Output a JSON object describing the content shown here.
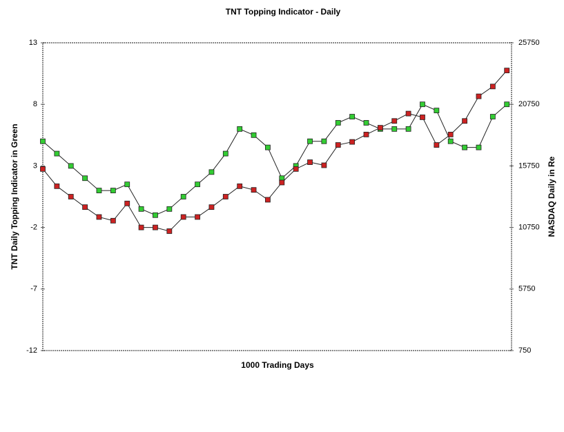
{
  "chart_data": {
    "type": "line",
    "title": "TNT Topping Indicator - Daily",
    "x_label": "1000 Trading Days",
    "y_label": "TNT Daily Topping Indicator in Green",
    "y2_label": "NASDAQ Daily in Re",
    "x": [
      0,
      30,
      60,
      90,
      120,
      150,
      180,
      210,
      240,
      270,
      300,
      330,
      360,
      390,
      420,
      450,
      480,
      510,
      540,
      570,
      600,
      630,
      660,
      690,
      720,
      750,
      780,
      810,
      840,
      870,
      900,
      930,
      960,
      990
    ],
    "xlim": [
      0,
      1000
    ],
    "ylim": [
      -12,
      13
    ],
    "yticks": [
      13,
      8,
      3,
      -2,
      -7,
      -12
    ],
    "y2lim": [
      750,
      25750
    ],
    "y2ticks": [
      25750,
      20750,
      15750,
      10750,
      5750,
      750
    ],
    "series": [
      {
        "name": "TNT Topping Indicator",
        "color": "#33cc33",
        "values": [
          5,
          4,
          3,
          2,
          1,
          1,
          1.5,
          -0.5,
          -1,
          -0.5,
          0.5,
          1.5,
          2.5,
          4,
          6,
          5.5,
          4.5,
          2,
          3,
          5,
          5,
          6.5,
          7,
          6.5,
          6,
          6,
          6,
          8,
          7.5,
          5,
          4.5,
          4.5,
          7,
          8
        ]
      },
      {
        "name": "NASDAQ",
        "color": "#cc2222",
        "axis": "y2",
        "values": [
          15500,
          14100,
          13250,
          12400,
          11600,
          11300,
          12700,
          10750,
          10750,
          10450,
          11600,
          11600,
          12400,
          13250,
          14100,
          13800,
          13000,
          14400,
          15500,
          16050,
          15800,
          17450,
          17700,
          18300,
          18850,
          19400,
          20000,
          19700,
          17450,
          18300,
          19400,
          21400,
          22200,
          23500
        ]
      }
    ]
  }
}
